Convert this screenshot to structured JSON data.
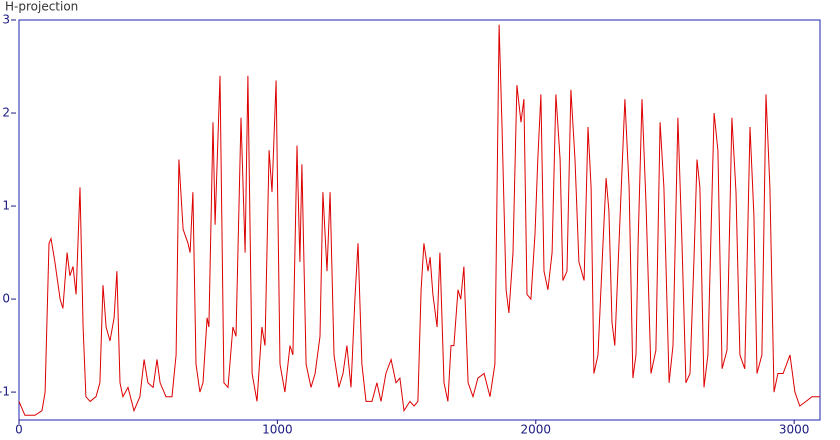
{
  "chart_data": {
    "type": "line",
    "title": "H-projection",
    "xlim": [
      0,
      3100
    ],
    "ylim": [
      -1.3,
      3
    ],
    "xticks": [
      0,
      1000,
      2000,
      3000
    ],
    "yticks": [
      -1,
      0,
      1,
      2,
      3
    ],
    "x": [
      0,
      23,
      62,
      89,
      101,
      116,
      124,
      139,
      159,
      170,
      186,
      197,
      209,
      221,
      236,
      248,
      259,
      275,
      298,
      313,
      325,
      337,
      352,
      368,
      379,
      391,
      402,
      422,
      445,
      468,
      484,
      499,
      519,
      534,
      546,
      569,
      592,
      608,
      619,
      635,
      654,
      662,
      673,
      685,
      700,
      712,
      728,
      735,
      751,
      759,
      778,
      793,
      809,
      828,
      840,
      859,
      875,
      886,
      902,
      921,
      940,
      952,
      968,
      979,
      995,
      1010,
      1029,
      1049,
      1060,
      1076,
      1087,
      1095,
      1111,
      1130,
      1146,
      1165,
      1176,
      1192,
      1204,
      1219,
      1238,
      1254,
      1269,
      1285,
      1300,
      1312,
      1327,
      1343,
      1366,
      1385,
      1401,
      1420,
      1440,
      1459,
      1474,
      1490,
      1513,
      1529,
      1544,
      1556,
      1567,
      1583,
      1591,
      1602,
      1618,
      1629,
      1645,
      1660,
      1672,
      1683,
      1699,
      1710,
      1722,
      1738,
      1757,
      1776,
      1800,
      1823,
      1842,
      1858,
      1869,
      1885,
      1896,
      1912,
      1927,
      1943,
      1954,
      1966,
      1981,
      1997,
      2008,
      2020,
      2032,
      2047,
      2063,
      2078,
      2094,
      2105,
      2121,
      2136,
      2152,
      2167,
      2187,
      2202,
      2214,
      2225,
      2241,
      2260,
      2272,
      2283,
      2295,
      2306,
      2322,
      2345,
      2361,
      2376,
      2388,
      2396,
      2411,
      2427,
      2446,
      2465,
      2481,
      2496,
      2516,
      2531,
      2550,
      2566,
      2581,
      2597,
      2613,
      2624,
      2635,
      2651,
      2666,
      2690,
      2705,
      2721,
      2740,
      2759,
      2775,
      2790,
      2809,
      2829,
      2844,
      2856,
      2875,
      2891,
      2906,
      2922,
      2937,
      2957,
      2984,
      3003,
      3022,
      3046,
      3069,
      3100
    ],
    "series": [
      {
        "color": "#dd0000",
        "values": [
          -1.1,
          -1.25,
          -1.25,
          -1.2,
          -1.0,
          0.6,
          0.65,
          0.4,
          0.0,
          -0.1,
          0.5,
          0.25,
          0.35,
          0.05,
          1.2,
          -0.3,
          -1.05,
          -1.1,
          -1.05,
          -0.9,
          0.15,
          -0.3,
          -0.45,
          -0.2,
          0.3,
          -0.9,
          -1.05,
          -0.95,
          -1.2,
          -1.05,
          -0.65,
          -0.9,
          -0.95,
          -0.65,
          -0.9,
          -1.05,
          -1.05,
          -0.6,
          1.5,
          0.75,
          0.6,
          0.5,
          1.15,
          -0.7,
          -1.0,
          -0.9,
          -0.2,
          -0.3,
          1.9,
          0.8,
          2.4,
          -0.9,
          -0.95,
          -0.3,
          -0.4,
          1.95,
          0.5,
          2.4,
          -0.8,
          -1.1,
          -0.3,
          -0.5,
          1.6,
          1.15,
          2.35,
          -0.7,
          -1.0,
          -0.5,
          -0.6,
          1.65,
          0.4,
          1.45,
          -0.7,
          -0.95,
          -0.8,
          -0.4,
          1.15,
          0.3,
          1.15,
          -0.6,
          -0.95,
          -0.8,
          -0.5,
          -0.95,
          0.0,
          0.6,
          -0.7,
          -1.1,
          -1.1,
          -0.9,
          -1.1,
          -0.8,
          -0.65,
          -0.9,
          -0.85,
          -1.2,
          -1.1,
          -1.15,
          -1.1,
          0.1,
          0.6,
          0.3,
          0.45,
          0.05,
          -0.3,
          0.5,
          -0.9,
          -1.1,
          -0.5,
          -0.5,
          0.1,
          0.0,
          0.35,
          -0.9,
          -1.05,
          -0.85,
          -0.8,
          -1.05,
          -0.7,
          2.95,
          1.9,
          0.1,
          -0.15,
          0.5,
          2.3,
          1.9,
          2.15,
          0.05,
          0.0,
          0.7,
          1.5,
          2.2,
          0.3,
          0.1,
          0.5,
          2.2,
          1.5,
          0.2,
          0.3,
          2.25,
          1.5,
          0.4,
          0.2,
          1.85,
          1.2,
          -0.8,
          -0.6,
          0.6,
          1.3,
          0.95,
          -0.25,
          -0.5,
          0.6,
          2.15,
          1.2,
          -0.85,
          -0.6,
          0.6,
          2.15,
          1.0,
          -0.8,
          -0.55,
          1.9,
          1.2,
          -0.9,
          -0.5,
          1.95,
          0.6,
          -0.9,
          -0.8,
          0.5,
          1.5,
          1.2,
          -0.95,
          -0.6,
          2.0,
          1.6,
          -0.75,
          -0.55,
          1.95,
          1.15,
          -0.6,
          -0.75,
          1.85,
          0.9,
          -0.8,
          -0.6,
          2.2,
          1.2,
          -1.0,
          -0.8,
          -0.8,
          -0.6,
          -1.0,
          -1.15,
          -1.1,
          -1.05,
          -1.05
        ]
      }
    ]
  }
}
